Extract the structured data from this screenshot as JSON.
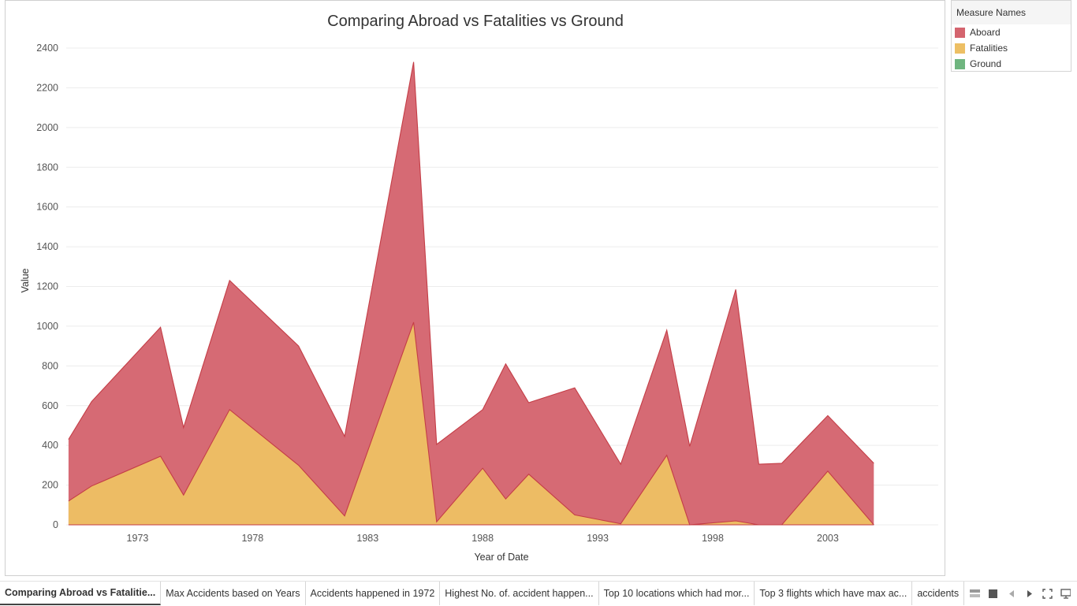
{
  "chart_data": {
    "type": "area",
    "title": "Comparing Abroad vs Fatalities vs Ground",
    "xlabel": "Year of Date",
    "ylabel": "Value",
    "xlim": [
      1969.9,
      2007.8
    ],
    "ylim": [
      0,
      2400
    ],
    "yticks": [
      0,
      200,
      400,
      600,
      800,
      1000,
      1200,
      1400,
      1600,
      1800,
      2000,
      2200,
      2400
    ],
    "xticks": [
      1973,
      1978,
      1983,
      1988,
      1993,
      1998,
      2003
    ],
    "grid": true,
    "x": [
      1970,
      1971,
      1974,
      1975,
      1977,
      1980,
      1982,
      1985,
      1986,
      1988,
      1989,
      1990,
      1992,
      1994,
      1996,
      1997,
      1999,
      2000,
      2001,
      2003,
      2005
    ],
    "series": [
      {
        "name": "Aboard",
        "color": "#d4646e",
        "values": [
          430,
          620,
          995,
          490,
          1230,
          900,
          445,
          2330,
          405,
          580,
          810,
          615,
          690,
          305,
          980,
          395,
          1185,
          305,
          310,
          550,
          310
        ]
      },
      {
        "name": "Fatalities",
        "color": "#edbf64",
        "values": [
          120,
          195,
          345,
          150,
          580,
          300,
          45,
          1020,
          15,
          285,
          130,
          255,
          50,
          5,
          350,
          0,
          20,
          0,
          0,
          270,
          0
        ]
      },
      {
        "name": "Ground",
        "color": "#6fb57f",
        "values": [
          0,
          0,
          0,
          0,
          0,
          0,
          0,
          0,
          0,
          0,
          0,
          0,
          0,
          0,
          0,
          0,
          0,
          0,
          0,
          0,
          0
        ]
      }
    ]
  },
  "legend": {
    "title": "Measure Names",
    "items": [
      {
        "label": "Aboard",
        "color": "#d4646e"
      },
      {
        "label": "Fatalities",
        "color": "#edbf64"
      },
      {
        "label": "Ground",
        "color": "#6fb57f"
      }
    ]
  },
  "tabs": [
    {
      "label": "Comparing Abroad vs Fatalitie...",
      "active": true
    },
    {
      "label": "Max Accidents based on Years",
      "active": false
    },
    {
      "label": "Accidents happened in 1972",
      "active": false
    },
    {
      "label": "Highest No. of. accident happen...",
      "active": false
    },
    {
      "label": "Top 10 locations which had mor...",
      "active": false
    },
    {
      "label": "Top 3 flights which have max ac...",
      "active": false
    },
    {
      "label": "accidents",
      "active": false
    }
  ],
  "tab_controls": [
    "sheet-sorter-icon",
    "stop-icon",
    "prev-sheet-icon",
    "next-sheet-icon",
    "fullscreen-icon",
    "presentation-icon"
  ]
}
